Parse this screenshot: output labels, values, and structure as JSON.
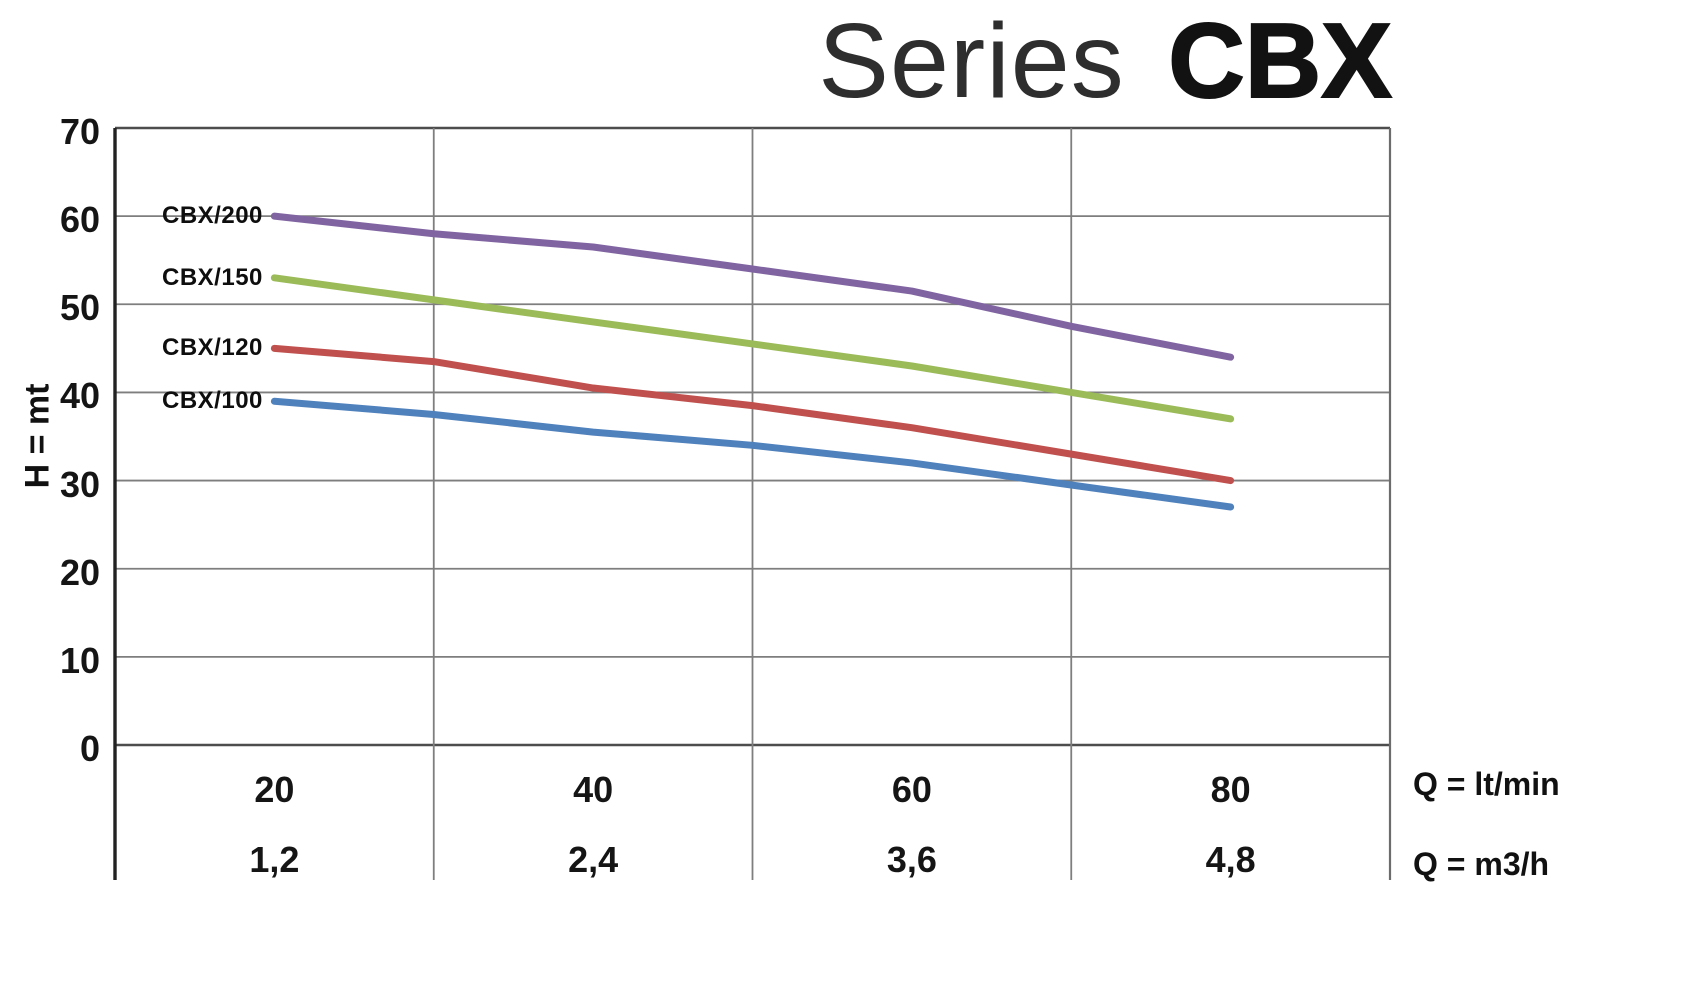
{
  "title": {
    "light": "Series",
    "bold": "CBX"
  },
  "axes": {
    "y_label": "H = mt",
    "x_unit_1": "Q = lt/min",
    "x_unit_2": "Q = m3/h"
  },
  "chart_data": {
    "type": "line",
    "title": "Series CBX",
    "xlabel": "Q = lt/min / Q = m3/h",
    "ylabel": "H = mt",
    "xlim": [
      10,
      90
    ],
    "ylim": [
      0,
      70
    ],
    "grid": true,
    "legend_position": "left-inline-labels",
    "y_ticks": [
      0,
      10,
      20,
      30,
      40,
      50,
      60,
      70
    ],
    "x_ticks_ltmin": [
      20,
      40,
      60,
      80
    ],
    "x_ticks_m3h": [
      "1,2",
      "2,4",
      "3,6",
      "4,8"
    ],
    "grid_x": [
      30,
      50,
      70
    ],
    "x": [
      20,
      30,
      40,
      50,
      60,
      70,
      80
    ],
    "series": [
      {
        "name": "CBX/200",
        "color": "#8064A2",
        "values": [
          60,
          58,
          56.5,
          54,
          51.5,
          47.5,
          44
        ]
      },
      {
        "name": "CBX/150",
        "color": "#9BBB59",
        "values": [
          53,
          50.5,
          48,
          45.5,
          43,
          40,
          37
        ]
      },
      {
        "name": "CBX/120",
        "color": "#C0504D",
        "values": [
          45,
          43.5,
          40.5,
          38.5,
          36,
          33,
          30
        ]
      },
      {
        "name": "CBX/100",
        "color": "#4F81BD",
        "values": [
          39,
          37.5,
          35.5,
          34,
          32,
          29.5,
          27
        ]
      }
    ]
  }
}
